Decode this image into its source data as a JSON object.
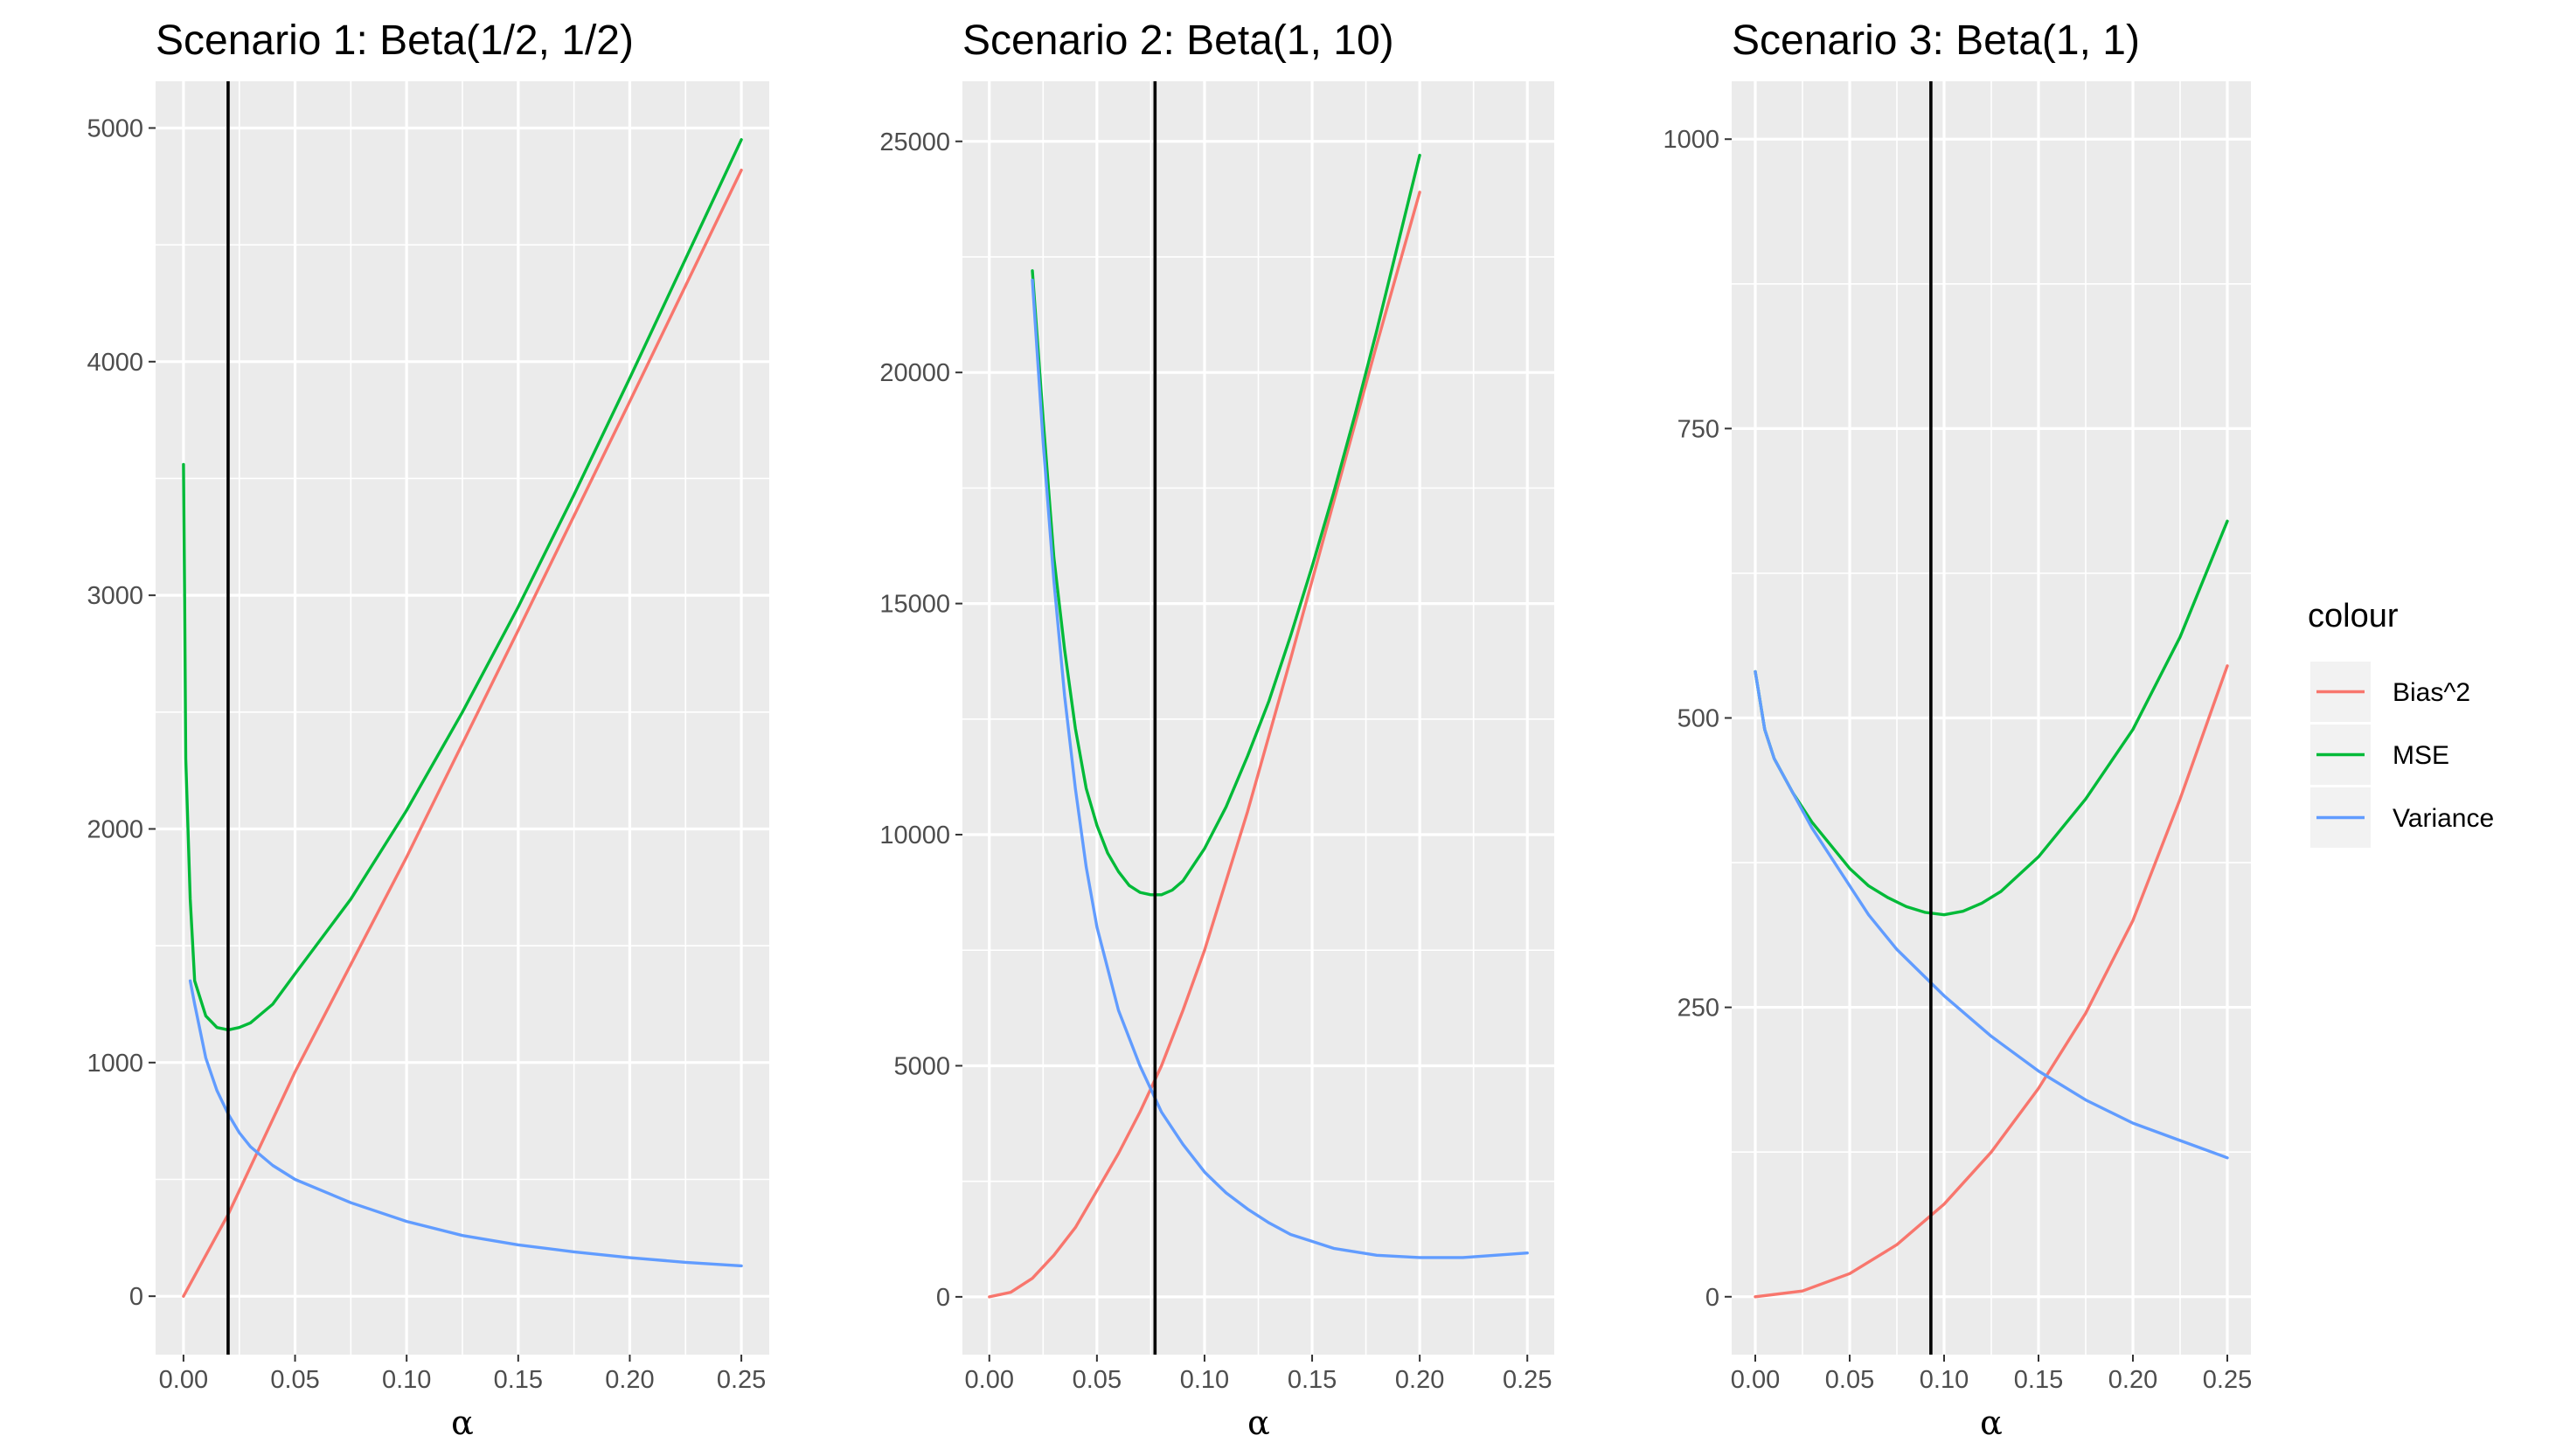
{
  "legend": {
    "title": "colour",
    "entries": [
      {
        "name": "Bias^2",
        "color": "#F8766D"
      },
      {
        "name": "MSE",
        "color": "#00BA38"
      },
      {
        "name": "Variance",
        "color": "#619CFF"
      }
    ]
  },
  "chart_data": [
    {
      "type": "line",
      "title": "Scenario 1: Beta(1/2, 1/2)",
      "xlabel": "α",
      "ylabel": "",
      "xlim": [
        -0.0125,
        0.2625
      ],
      "ylim": [
        -250,
        5200
      ],
      "x_ticks": [
        0.0,
        0.05,
        0.1,
        0.15,
        0.2,
        0.25
      ],
      "x_tick_labels": [
        "0.00",
        "0.05",
        "0.10",
        "0.15",
        "0.20",
        "0.25"
      ],
      "y_ticks": [
        0,
        1000,
        2000,
        3000,
        4000,
        5000
      ],
      "y_tick_labels": [
        "0",
        "1000",
        "2000",
        "3000",
        "4000",
        "5000"
      ],
      "vline": 0.02,
      "grid": true,
      "series": [
        {
          "name": "Bias^2",
          "x": [
            0.0,
            0.02,
            0.05,
            0.1,
            0.15,
            0.2,
            0.25
          ],
          "y": [
            0,
            350,
            960,
            1880,
            2850,
            3830,
            4820
          ]
        },
        {
          "name": "MSE",
          "x": [
            0.0,
            0.0005,
            0.001,
            0.003,
            0.005,
            0.01,
            0.015,
            0.02,
            0.025,
            0.03,
            0.04,
            0.05,
            0.075,
            0.1,
            0.125,
            0.15,
            0.175,
            0.2,
            0.225,
            0.25
          ],
          "y": [
            3560,
            3000,
            2300,
            1700,
            1350,
            1200,
            1150,
            1140,
            1150,
            1170,
            1250,
            1380,
            1700,
            2080,
            2500,
            2950,
            3430,
            3930,
            4440,
            4950
          ]
        },
        {
          "name": "Variance",
          "x": [
            0.003,
            0.005,
            0.01,
            0.015,
            0.02,
            0.025,
            0.03,
            0.04,
            0.05,
            0.075,
            0.1,
            0.125,
            0.15,
            0.175,
            0.2,
            0.225,
            0.25
          ],
          "y": [
            1350,
            1250,
            1020,
            880,
            780,
            700,
            640,
            560,
            500,
            400,
            320,
            260,
            220,
            190,
            165,
            145,
            130
          ]
        }
      ]
    },
    {
      "type": "line",
      "title": "Scenario 2: Beta(1, 10)",
      "xlabel": "α",
      "ylabel": "",
      "xlim": [
        -0.0125,
        0.2625
      ],
      "ylim": [
        -1250,
        26300
      ],
      "x_ticks": [
        0.0,
        0.05,
        0.1,
        0.15,
        0.2,
        0.25
      ],
      "x_tick_labels": [
        "0.00",
        "0.05",
        "0.10",
        "0.15",
        "0.20",
        "0.25"
      ],
      "y_ticks": [
        0,
        5000,
        10000,
        15000,
        20000,
        25000
      ],
      "y_tick_labels": [
        "0",
        "5000",
        "10000",
        "15000",
        "20000",
        "25000"
      ],
      "vline": 0.077,
      "grid": true,
      "series": [
        {
          "name": "Bias^2",
          "x": [
            0.0,
            0.01,
            0.02,
            0.03,
            0.04,
            0.05,
            0.06,
            0.07,
            0.08,
            0.09,
            0.1,
            0.12,
            0.14,
            0.16,
            0.18,
            0.2
          ],
          "y": [
            0,
            100,
            400,
            900,
            1500,
            2300,
            3100,
            4000,
            5000,
            6200,
            7500,
            10500,
            13800,
            17200,
            20600,
            23900
          ]
        },
        {
          "name": "MSE",
          "x": [
            0.02,
            0.025,
            0.03,
            0.035,
            0.04,
            0.045,
            0.05,
            0.055,
            0.06,
            0.065,
            0.07,
            0.075,
            0.08,
            0.085,
            0.09,
            0.1,
            0.11,
            0.12,
            0.13,
            0.14,
            0.15,
            0.16,
            0.17,
            0.18,
            0.19,
            0.2
          ],
          "y": [
            22200,
            19000,
            16000,
            14000,
            12300,
            11000,
            10200,
            9600,
            9200,
            8900,
            8750,
            8700,
            8700,
            8800,
            9000,
            9700,
            10600,
            11700,
            12900,
            14300,
            15800,
            17400,
            19100,
            20900,
            22800,
            24700
          ]
        },
        {
          "name": "Variance",
          "x": [
            0.02,
            0.025,
            0.03,
            0.035,
            0.04,
            0.045,
            0.05,
            0.06,
            0.07,
            0.08,
            0.09,
            0.1,
            0.11,
            0.12,
            0.13,
            0.14,
            0.15,
            0.16,
            0.18,
            0.2,
            0.22,
            0.25
          ],
          "y": [
            22000,
            18500,
            15500,
            13000,
            11000,
            9300,
            8000,
            6200,
            5000,
            4000,
            3300,
            2700,
            2250,
            1900,
            1600,
            1350,
            1200,
            1050,
            900,
            850,
            850,
            950
          ]
        }
      ]
    },
    {
      "type": "line",
      "title": "Scenario 3: Beta(1, 1)",
      "xlabel": "α",
      "ylabel": "",
      "xlim": [
        -0.0125,
        0.2625
      ],
      "ylim": [
        -50,
        1050
      ],
      "x_ticks": [
        0.0,
        0.05,
        0.1,
        0.15,
        0.2,
        0.25
      ],
      "x_tick_labels": [
        "0.00",
        "0.05",
        "0.10",
        "0.15",
        "0.20",
        "0.25"
      ],
      "y_ticks": [
        0,
        250,
        500,
        750,
        1000
      ],
      "y_tick_labels": [
        "0",
        "250",
        "500",
        "750",
        "1000"
      ],
      "vline": 0.093,
      "grid": true,
      "series": [
        {
          "name": "Bias^2",
          "x": [
            0.0,
            0.025,
            0.05,
            0.075,
            0.1,
            0.125,
            0.15,
            0.175,
            0.2,
            0.225,
            0.25
          ],
          "y": [
            0,
            5,
            20,
            45,
            80,
            125,
            180,
            245,
            325,
            430,
            545
          ]
        },
        {
          "name": "MSE",
          "x": [
            0.0,
            0.005,
            0.01,
            0.02,
            0.03,
            0.04,
            0.05,
            0.06,
            0.07,
            0.08,
            0.09,
            0.1,
            0.11,
            0.12,
            0.13,
            0.15,
            0.175,
            0.2,
            0.225,
            0.25
          ],
          "y": [
            540,
            490,
            465,
            435,
            410,
            390,
            370,
            355,
            345,
            337,
            332,
            330,
            333,
            340,
            350,
            380,
            430,
            490,
            570,
            670
          ]
        },
        {
          "name": "Variance",
          "x": [
            0.0,
            0.005,
            0.01,
            0.02,
            0.03,
            0.04,
            0.05,
            0.06,
            0.075,
            0.1,
            0.125,
            0.15,
            0.175,
            0.2,
            0.225,
            0.25
          ],
          "y": [
            540,
            490,
            465,
            435,
            405,
            380,
            355,
            330,
            300,
            260,
            225,
            195,
            170,
            150,
            135,
            120
          ]
        }
      ]
    }
  ]
}
